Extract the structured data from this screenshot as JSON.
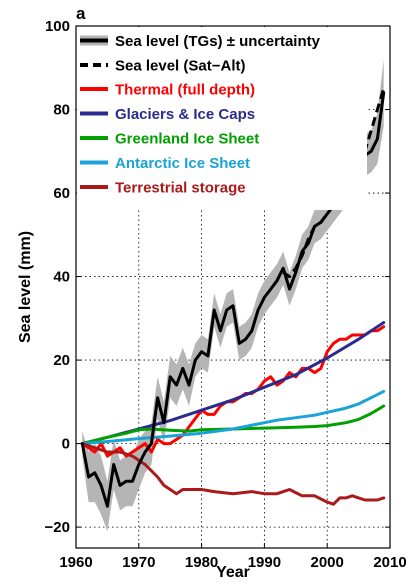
{
  "chart_data": {
    "type": "line",
    "panel_label": "a",
    "xlabel": "Year",
    "ylabel": "Sea level (mm)",
    "xlim": [
      1960,
      2010
    ],
    "ylim": [
      -25,
      100
    ],
    "xticks": [
      1960,
      1970,
      1980,
      1990,
      2000,
      2010
    ],
    "yticks": [
      -20,
      0,
      20,
      40,
      60,
      80,
      100
    ],
    "ytick_labels": [
      "−20",
      "0",
      "20",
      "40",
      "60",
      "80",
      "100"
    ],
    "grid": true,
    "legend_position": "top-left",
    "series": [
      {
        "name": "Sea level (TGs) ± uncertainty",
        "color": "#000000",
        "band_color": "#b5b5b5",
        "style": "solid",
        "x": [
          1961,
          1962,
          1963,
          1964,
          1965,
          1966,
          1967,
          1968,
          1969,
          1970,
          1971,
          1972,
          1973,
          1974,
          1975,
          1976,
          1977,
          1978,
          1979,
          1980,
          1981,
          1982,
          1983,
          1984,
          1985,
          1986,
          1987,
          1988,
          1989,
          1990,
          1991,
          1992,
          1993,
          1994,
          1995,
          1996,
          1997,
          1998,
          1999,
          2000,
          2001,
          2002,
          2003,
          2004,
          2005,
          2006,
          2007,
          2008,
          2009
        ],
        "y": [
          0,
          -8,
          -7,
          -10,
          -15,
          -5,
          -10,
          -9,
          -9,
          -5,
          -2,
          0,
          11,
          5,
          16,
          14,
          18,
          14,
          20,
          22,
          21,
          32,
          27,
          32,
          33,
          24,
          25,
          27,
          32,
          35,
          37,
          39,
          42,
          37,
          41,
          46,
          48,
          52,
          53,
          55,
          57,
          59,
          61,
          62,
          70,
          69,
          70,
          73,
          84
        ],
        "lower": [
          -3,
          -14,
          -14,
          -17,
          -21,
          -11,
          -16,
          -15,
          -15,
          -11,
          -7,
          -5,
          6,
          0,
          11,
          9,
          13,
          9,
          16,
          18,
          17,
          28,
          23,
          28,
          29,
          20,
          21,
          23,
          28,
          31,
          33,
          35,
          38,
          33,
          37,
          42,
          44,
          48,
          49,
          51,
          53,
          55,
          57,
          58,
          65,
          64,
          65,
          67,
          76
        ],
        "upper": [
          3,
          -2,
          0,
          -3,
          -9,
          1,
          -4,
          -3,
          -3,
          1,
          3,
          5,
          16,
          10,
          21,
          19,
          23,
          19,
          24,
          26,
          25,
          36,
          31,
          36,
          37,
          28,
          29,
          31,
          36,
          39,
          41,
          43,
          46,
          41,
          45,
          50,
          52,
          56,
          57,
          59,
          61,
          63,
          65,
          66,
          75,
          74,
          75,
          79,
          92
        ]
      },
      {
        "name": "Sea level (Sat−Alt)",
        "color": "#000000",
        "style": "dashed",
        "x": [
          1993,
          1994,
          1995,
          1996,
          1997,
          1998,
          1999,
          2000,
          2001,
          2002,
          2003,
          2004,
          2005,
          2006,
          2007,
          2008,
          2009
        ],
        "y": [
          41,
          40,
          42,
          45,
          49,
          52,
          53,
          55,
          57,
          60,
          62,
          64,
          67,
          70,
          75,
          80,
          85
        ]
      },
      {
        "name": "Thermal (full depth)",
        "color": "#ff0000",
        "style": "solid",
        "x": [
          1961,
          1962,
          1963,
          1964,
          1965,
          1966,
          1967,
          1968,
          1969,
          1970,
          1971,
          1972,
          1973,
          1974,
          1975,
          1976,
          1977,
          1978,
          1979,
          1980,
          1981,
          1982,
          1983,
          1984,
          1985,
          1986,
          1987,
          1988,
          1989,
          1990,
          1991,
          1992,
          1993,
          1994,
          1995,
          1996,
          1997,
          1998,
          1999,
          2000,
          2001,
          2002,
          2003,
          2004,
          2005,
          2006,
          2007,
          2008,
          2009
        ],
        "y": [
          0,
          -1,
          -2,
          0,
          -3,
          -2,
          -1,
          -3,
          -2,
          -1,
          0,
          -2,
          1,
          0,
          0,
          1,
          2,
          4,
          6,
          8,
          7,
          7,
          9,
          10,
          10,
          11,
          12,
          12,
          13,
          15,
          16,
          14,
          15,
          17,
          16,
          18,
          18,
          17,
          18,
          22,
          24,
          25,
          25,
          26,
          26,
          26,
          27,
          27,
          28
        ]
      },
      {
        "name": "Glaciers & Ice Caps",
        "color": "#2b2b8f",
        "style": "solid",
        "x": [
          1961,
          1965,
          1970,
          1975,
          1980,
          1985,
          1990,
          1995,
          2000,
          2005,
          2009
        ],
        "y": [
          0,
          1.5,
          3.5,
          5.5,
          8,
          10.5,
          13.5,
          16.5,
          20.5,
          25,
          29
        ]
      },
      {
        "name": "Greenland Ice Sheet",
        "color": "#00a000",
        "style": "solid",
        "x": [
          1961,
          1965,
          1968,
          1970,
          1972,
          1975,
          1978,
          1980,
          1985,
          1990,
          1995,
          1998,
          2000,
          2003,
          2005,
          2007,
          2009
        ],
        "y": [
          0,
          1.5,
          2.5,
          3.3,
          3.5,
          3.2,
          3.0,
          3.3,
          3.5,
          3.7,
          3.9,
          4.1,
          4.3,
          5.0,
          5.8,
          7.2,
          9.0
        ]
      },
      {
        "name": "Antarctic Ice Sheet",
        "color": "#1aa3d6",
        "style": "solid",
        "x": [
          1961,
          1965,
          1970,
          1975,
          1980,
          1985,
          1990,
          1992,
          1995,
          1998,
          2000,
          2003,
          2005,
          2007,
          2009
        ],
        "y": [
          0,
          0.5,
          1.2,
          1.8,
          2.5,
          3.5,
          5.0,
          5.6,
          6.2,
          6.8,
          7.5,
          8.5,
          9.5,
          11.0,
          12.5
        ]
      },
      {
        "name": "Terrestrial storage",
        "color": "#aa1a1a",
        "style": "solid",
        "x": [
          1961,
          1963,
          1965,
          1967,
          1969,
          1971,
          1973,
          1974,
          1975,
          1976,
          1977,
          1978,
          1980,
          1982,
          1985,
          1988,
          1990,
          1992,
          1994,
          1996,
          1998,
          2000,
          2001,
          2002,
          2003,
          2004,
          2006,
          2008,
          2009
        ],
        "y": [
          0,
          -1,
          -2,
          -2,
          -3,
          -5,
          -8,
          -10,
          -11,
          -12,
          -11,
          -11,
          -11,
          -11.5,
          -12,
          -11.5,
          -12,
          -12,
          -11,
          -12.5,
          -12.5,
          -14,
          -14.5,
          -13,
          -13,
          -12.5,
          -13.5,
          -13.5,
          -13
        ]
      }
    ]
  }
}
